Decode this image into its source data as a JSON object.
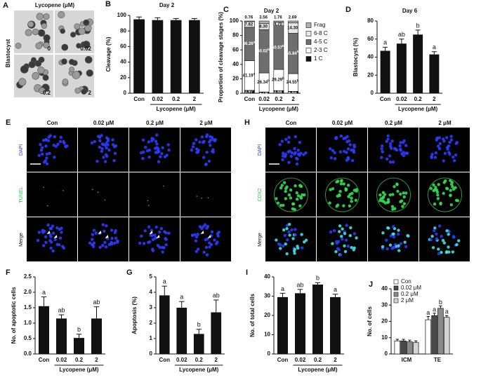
{
  "images": {
    "A": {
      "panel": "A",
      "title": "Lycopene (μM)",
      "row_label": "Blastocyst",
      "tiles": [
        "0",
        "0.02",
        "0.2",
        "2"
      ]
    },
    "E": {
      "panel": "E",
      "columns": [
        "Con",
        "0.02 μM",
        "0.2 μM",
        "2 μM"
      ],
      "rows": [
        "DAPI",
        "TUNEL",
        "Merge"
      ]
    },
    "H": {
      "panel": "H",
      "columns": [
        "Con",
        "0.02 μM",
        "0.2 μM",
        "2 μM"
      ],
      "rows": [
        "DAPI",
        "CDX2",
        "Merge"
      ]
    }
  },
  "chart_data": [
    {
      "type": "bar",
      "panel": "B",
      "title": "Day 2",
      "ylabel": "Cleavage (%)",
      "xlabel": "Lycopene (μM)",
      "categories": [
        "Con",
        "0.02",
        "0.2",
        "2"
      ],
      "values": [
        95,
        94,
        94,
        94
      ],
      "errors": [
        3,
        3,
        2,
        2
      ],
      "color": "#111111",
      "ylim": [
        0,
        100
      ],
      "yticks": [
        0,
        20,
        40,
        60,
        80,
        100
      ]
    },
    {
      "type": "stacked_bar",
      "panel": "C",
      "title": "Day 2",
      "ylabel": "Proportion of cleavage stages (%)",
      "xlabel": "Lycopene (μM)",
      "categories": [
        "Con",
        "0.02",
        "0.2",
        "2"
      ],
      "series": [
        {
          "name": "1 C",
          "color": "#111111",
          "values": [
            3.97,
            1.78,
            3.68,
            2.63
          ]
        },
        {
          "name": "2-3 C",
          "color": "#ffffff",
          "values": [
            41.19,
            26.34,
            29.29,
            24.55
          ],
          "letters": [
            "a",
            "b",
            "b",
            "b"
          ]
        },
        {
          "name": "4-5 C",
          "color": "#6e6e6e",
          "values": [
            46.26,
            60.02,
            60.57,
            55.84
          ],
          "letters": [
            "a",
            "b",
            "b",
            "b"
          ]
        },
        {
          "name": "6-8 C",
          "color": "#e6e6e6",
          "values": [
            7.82,
            8.3,
            4.7,
            14.3
          ],
          "value_labels": [
            "7.82",
            "8.30",
            "4.70",
            "14.30"
          ]
        },
        {
          "name": "Frag",
          "color": "#b0b0b0",
          "values": [
            0.76,
            3.56,
            1.76,
            2.69
          ]
        }
      ],
      "ylim": [
        0,
        100
      ],
      "yticks": [
        0,
        20,
        40,
        60,
        80,
        100
      ]
    },
    {
      "type": "bar",
      "panel": "D",
      "title": "Day 6",
      "ylabel": "Blastocyst (%)",
      "xlabel": "Lycopene (μM)",
      "categories": [
        "Con",
        "0.02",
        "0.2",
        "2"
      ],
      "values": [
        47,
        55,
        65,
        43
      ],
      "errors": [
        4,
        5,
        5,
        3
      ],
      "letters": [
        "a",
        "ab",
        "b",
        "a"
      ],
      "color": "#111111",
      "ylim": [
        0,
        80
      ],
      "yticks": [
        0,
        20,
        40,
        60,
        80
      ]
    },
    {
      "type": "bar",
      "panel": "F",
      "ylabel": "No. of apoptotic cells",
      "xlabel": "Lycopene (μM)",
      "categories": [
        "Con",
        "0.02",
        "0.2",
        "2"
      ],
      "values": [
        1.55,
        1.15,
        0.52,
        1.15
      ],
      "errors": [
        0.3,
        0.12,
        0.12,
        0.38
      ],
      "letters": [
        "a",
        "ab",
        "b",
        "ab"
      ],
      "color": "#111111",
      "ylim": [
        0,
        2.5
      ],
      "yticks": [
        {
          "value": 0,
          "label": "0.0"
        },
        0.5,
        {
          "value": 1,
          "label": "1.0"
        },
        1.5,
        {
          "value": 2,
          "label": "2.0"
        },
        2.5
      ]
    },
    {
      "type": "bar",
      "panel": "G",
      "ylabel": "Apoptosis (%)",
      "xlabel": "Lycopene (μM)",
      "categories": [
        "Con",
        "0.02",
        "0.2",
        "2"
      ],
      "values": [
        3.8,
        3.0,
        1.3,
        2.7
      ],
      "errors": [
        0.6,
        0.4,
        0.3,
        0.8
      ],
      "letters": [
        "a",
        "a",
        "b",
        "ab"
      ],
      "color": "#111111",
      "ylim": [
        0,
        5
      ],
      "yticks": [
        0,
        1,
        2,
        3,
        4,
        5
      ]
    },
    {
      "type": "bar",
      "panel": "I",
      "ylabel": "No. of total cells",
      "xlabel": "Lycopene (μM)",
      "categories": [
        "Con",
        "0.02",
        "0.2",
        "2"
      ],
      "values": [
        29.5,
        31.5,
        36,
        29.5
      ],
      "errors": [
        2,
        2,
        1,
        1.5
      ],
      "letters": [
        "a",
        "ab",
        "b",
        "a"
      ],
      "color": "#111111",
      "ylim": [
        0,
        40
      ],
      "yticks": [
        0,
        10,
        20,
        30,
        40
      ]
    },
    {
      "type": "grouped_bar",
      "panel": "J",
      "ylabel": "No. of cells",
      "categories": [
        "ICM",
        "TE"
      ],
      "series": [
        {
          "name": "Con",
          "color": "#ffffff",
          "values": [
            8,
            21
          ],
          "errors": [
            1,
            2
          ],
          "letters": [
            null,
            "a"
          ]
        },
        {
          "name": "0.02 μM",
          "color": "#4a4a4a",
          "values": [
            8,
            23.5
          ],
          "errors": [
            1,
            1.5
          ],
          "letters": [
            null,
            "a"
          ]
        },
        {
          "name": "0.2 μM",
          "color": "#8a8a8a",
          "values": [
            7.5,
            28
          ],
          "errors": [
            1,
            1.5
          ],
          "letters": [
            null,
            "b"
          ]
        },
        {
          "name": "2 μM",
          "color": "#d4d4d4",
          "values": [
            7,
            22.5
          ],
          "errors": [
            1,
            1
          ],
          "letters": [
            null,
            "a"
          ]
        }
      ],
      "ylim": [
        0,
        40
      ],
      "yticks": [
        0,
        10,
        20,
        30,
        40
      ]
    }
  ]
}
